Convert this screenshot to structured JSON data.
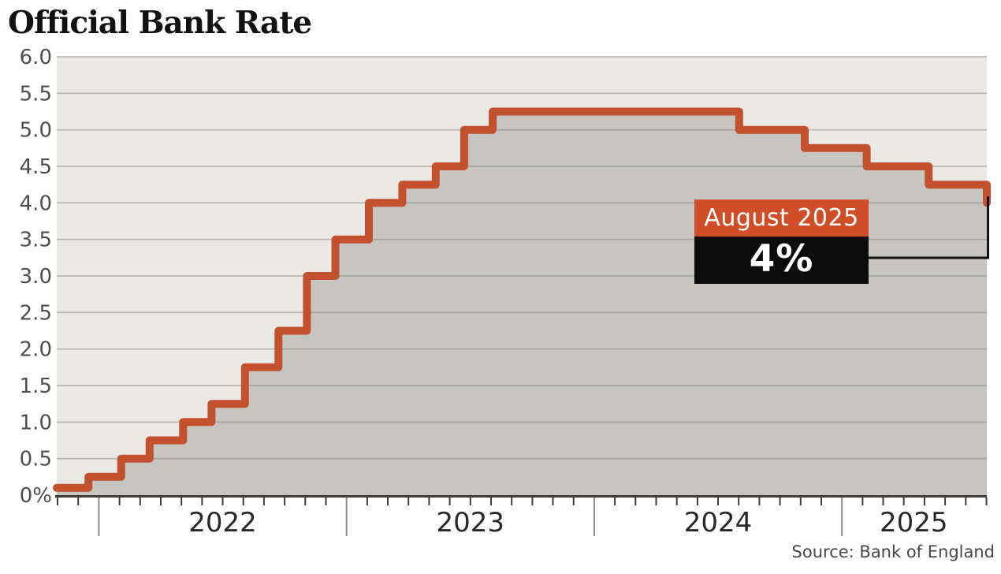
{
  "header": {
    "title": "Official Bank Rate"
  },
  "footer": {
    "source": "Source: Bank of England"
  },
  "annotation": {
    "label": "August 2025",
    "value": "4%"
  },
  "colors": {
    "plot_background": "#ebe9e6",
    "area_fill": "#c6c5c2",
    "line": "#c4512e",
    "accent_box": "#cf4e27",
    "value_box": "#0c0c0c",
    "grid": "#8a8985",
    "axis": "#3f3c39",
    "year_tick": "#8f8d8a",
    "y_label": "#504e4b",
    "x_label": "#2b2927",
    "connector": "#141414"
  },
  "chart_data": {
    "type": "area",
    "subtype": "step",
    "title": "Official Bank Rate",
    "xlabel": "",
    "ylabel": "",
    "unit": "%",
    "grid": true,
    "xlim": [
      2021.83,
      2025.585
    ],
    "ylim": [
      0,
      6
    ],
    "y_ticks": [
      {
        "value": 6.0,
        "label": "6.0"
      },
      {
        "value": 5.5,
        "label": "5.5"
      },
      {
        "value": 5.0,
        "label": "5.0"
      },
      {
        "value": 4.5,
        "label": "4.5"
      },
      {
        "value": 4.0,
        "label": "4.0"
      },
      {
        "value": 3.5,
        "label": "3.5"
      },
      {
        "value": 3.0,
        "label": "3.0"
      },
      {
        "value": 2.5,
        "label": "2.5"
      },
      {
        "value": 2.0,
        "label": "2.0"
      },
      {
        "value": 1.5,
        "label": "1.5"
      },
      {
        "value": 1.0,
        "label": "1.0"
      },
      {
        "value": 0.5,
        "label": "0.5"
      },
      {
        "value": 0.0,
        "label": "0%"
      }
    ],
    "x_year_labels": [
      {
        "label": "2022",
        "center": 2022.5
      },
      {
        "label": "2023",
        "center": 2023.5
      },
      {
        "label": "2024",
        "center": 2024.5
      },
      {
        "label": "2025",
        "center": 2025.29
      }
    ],
    "series": [
      {
        "name": "Official Bank Rate (%)",
        "points": [
          {
            "date": "Nov 2021",
            "x": 2021.83,
            "value": 0.1
          },
          {
            "date": "Dec 2021",
            "x": 2021.958,
            "value": 0.25
          },
          {
            "date": "Feb 2022",
            "x": 2022.09,
            "value": 0.5
          },
          {
            "date": "Mar 2022",
            "x": 2022.205,
            "value": 0.75
          },
          {
            "date": "May 2022",
            "x": 2022.34,
            "value": 1.0
          },
          {
            "date": "Jun 2022",
            "x": 2022.455,
            "value": 1.25
          },
          {
            "date": "Aug 2022",
            "x": 2022.59,
            "value": 1.75
          },
          {
            "date": "Sep 2022",
            "x": 2022.725,
            "value": 2.25
          },
          {
            "date": "Nov 2022",
            "x": 2022.84,
            "value": 3.0
          },
          {
            "date": "Dec 2022",
            "x": 2022.955,
            "value": 3.5
          },
          {
            "date": "Feb 2023",
            "x": 2023.09,
            "value": 4.0
          },
          {
            "date": "Mar 2023",
            "x": 2023.225,
            "value": 4.25
          },
          {
            "date": "May 2023",
            "x": 2023.36,
            "value": 4.5
          },
          {
            "date": "Jun 2023",
            "x": 2023.475,
            "value": 5.0
          },
          {
            "date": "Aug 2023",
            "x": 2023.59,
            "value": 5.25
          },
          {
            "date": "Aug 2024",
            "x": 2024.585,
            "value": 5.0
          },
          {
            "date": "Nov 2024",
            "x": 2024.85,
            "value": 4.75
          },
          {
            "date": "Feb 2025",
            "x": 2025.1,
            "value": 4.5
          },
          {
            "date": "May 2025",
            "x": 2025.35,
            "value": 4.25
          },
          {
            "date": "Aug 2025",
            "x": 2025.585,
            "value": 4.0
          }
        ]
      }
    ],
    "annotation_target": {
      "date": "Aug 2025",
      "x": 2025.585,
      "value": 4.0
    },
    "legend": "none"
  }
}
